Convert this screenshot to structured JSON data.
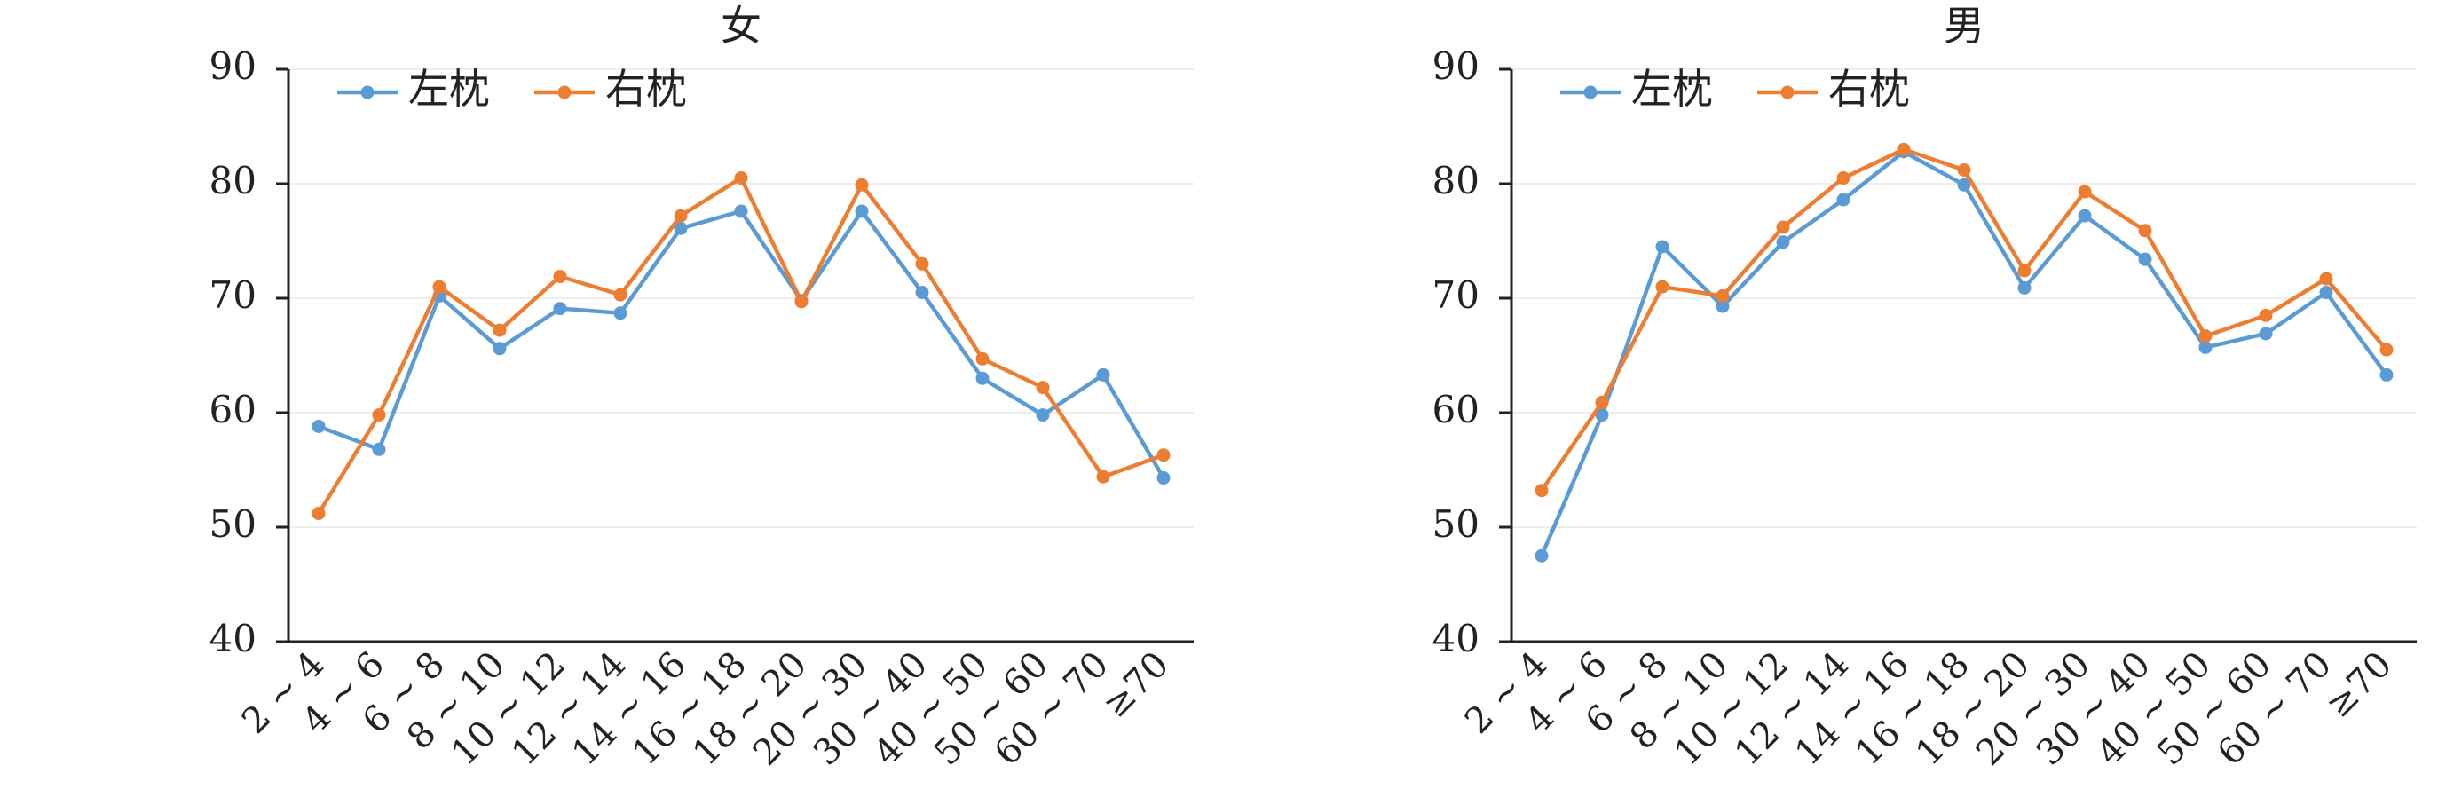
{
  "chart_data": [
    {
      "type": "line",
      "title": "女",
      "xlabel": "",
      "ylabel": "",
      "ylim": [
        40,
        90
      ],
      "yticks": [
        "40",
        "50",
        "60",
        "70",
        "80",
        "90"
      ],
      "categories": [
        "2 ~ 4",
        "4 ~ 6",
        "6 ~ 8",
        "8 ~ 10",
        "10 ~ 12",
        "12 ~ 14",
        "14 ~ 16",
        "16 ~ 18",
        "18 ~ 20",
        "20 ~ 30",
        "30 ~ 40",
        "40 ~ 50",
        "50 ~ 60",
        "60 ~ 70",
        "≥70"
      ],
      "legend_position": "top-left",
      "grid": "horizontal",
      "series": [
        {
          "name": "左枕",
          "color": "#5b9bd5",
          "values": [
            58.8,
            56.8,
            70.2,
            65.6,
            69.1,
            68.7,
            76.1,
            77.6,
            69.8,
            77.6,
            70.5,
            63.0,
            59.8,
            63.3,
            54.3
          ]
        },
        {
          "name": "右枕",
          "color": "#ed7d31",
          "values": [
            51.2,
            59.8,
            71.0,
            67.2,
            71.9,
            70.3,
            77.2,
            80.5,
            69.7,
            79.9,
            73.0,
            64.7,
            62.2,
            54.4,
            56.3
          ]
        }
      ]
    },
    {
      "type": "line",
      "title": "男",
      "xlabel": "",
      "ylabel": "",
      "ylim": [
        40,
        90
      ],
      "yticks": [
        "40",
        "50",
        "60",
        "70",
        "80",
        "90"
      ],
      "categories": [
        "2 ~ 4",
        "4 ~ 6",
        "6 ~ 8",
        "8 ~ 10",
        "10 ~ 12",
        "12 ~ 14",
        "14 ~ 16",
        "16 ~ 18",
        "18 ~ 20",
        "20 ~ 30",
        "30 ~ 40",
        "40 ~ 50",
        "50 ~ 60",
        "60 ~ 70",
        "≥70"
      ],
      "legend_position": "top-left",
      "grid": "horizontal",
      "series": [
        {
          "name": "左枕",
          "color": "#5b9bd5",
          "values": [
            47.5,
            59.8,
            74.5,
            69.3,
            74.9,
            78.6,
            82.8,
            79.9,
            70.9,
            77.2,
            73.4,
            65.7,
            66.9,
            70.5,
            63.3
          ]
        },
        {
          "name": "右枕",
          "color": "#ed7d31",
          "values": [
            53.2,
            60.9,
            71.0,
            70.2,
            76.2,
            80.5,
            83.0,
            81.2,
            72.4,
            79.3,
            75.9,
            66.7,
            68.5,
            71.7,
            65.5
          ]
        }
      ]
    }
  ]
}
